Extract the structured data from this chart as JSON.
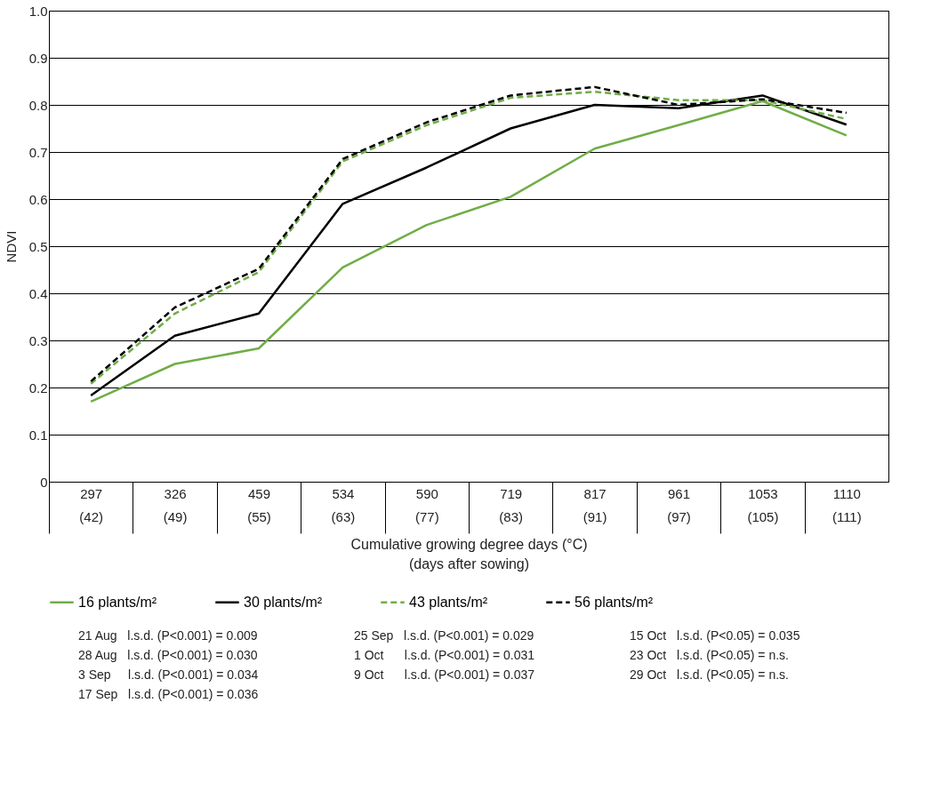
{
  "chart_data": {
    "type": "line",
    "ylabel": "NDVI",
    "xlabel": "Cumulative growing degree days (°C)\n(days after sowing)",
    "categories": [
      "297\n(42)",
      "326\n(49)",
      "459\n(55)",
      "534\n(63)",
      "590\n(77)",
      "719\n(83)",
      "817\n(91)",
      "961\n(97)",
      "1053\n(105)",
      "1110\n(111)"
    ],
    "series": [
      {
        "name": "16 plants/m²",
        "color": "#70ad47",
        "line_style": "solid",
        "values": [
          0.17,
          0.25,
          0.283,
          0.455,
          0.545,
          0.605,
          0.707,
          0.757,
          0.808,
          0.735
        ]
      },
      {
        "name": "30 plants/m²",
        "color": "#000000",
        "line_style": "solid",
        "values": [
          0.183,
          0.31,
          0.357,
          0.59,
          0.667,
          0.75,
          0.8,
          0.793,
          0.82,
          0.758
        ]
      },
      {
        "name": "43 plants/m²",
        "color": "#70ad47",
        "line_style": "dashed",
        "values": [
          0.208,
          0.357,
          0.445,
          0.68,
          0.757,
          0.815,
          0.828,
          0.81,
          0.81,
          0.77
        ]
      },
      {
        "name": "56 plants/m²",
        "color": "#000000",
        "line_style": "dashed",
        "values": [
          0.213,
          0.37,
          0.452,
          0.685,
          0.763,
          0.82,
          0.838,
          0.8,
          0.812,
          0.783
        ]
      }
    ],
    "ylim": [
      0,
      1
    ],
    "yticks": [
      0,
      0.1,
      0.2,
      0.3,
      0.4,
      0.5,
      0.6,
      0.7,
      0.8,
      0.9,
      {
        "value": 1,
        "label": "1.0"
      }
    ],
    "grid": "y",
    "legend": "bottom",
    "marker": "none",
    "annotations": [
      "21 Aug   l.s.d. (P<0.001) = 0.009",
      "25 Sep   l.s.d. (P<0.001) = 0.029",
      "15 Oct   l.s.d. (P<0.05) = 0.035",
      "28 Aug   l.s.d. (P<0.001) = 0.030",
      "1 Oct      l.s.d. (P<0.001) = 0.031",
      "23 Oct   l.s.d. (P<0.05) = n.s.",
      "3 Sep     l.s.d. (P<0.001) = 0.034",
      "9 Oct      l.s.d. (P<0.001) = 0.037",
      "29 Oct   l.s.d. (P<0.05) = n.s.",
      "17 Sep   l.s.d. (P<0.001) = 0.036"
    ]
  }
}
